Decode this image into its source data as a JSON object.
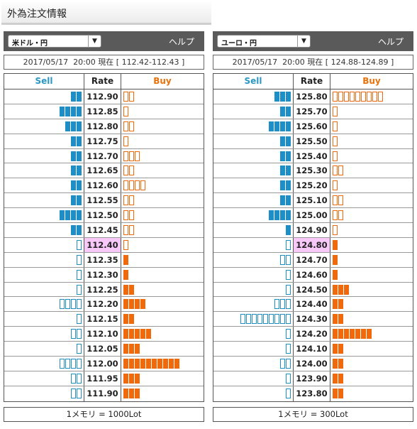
{
  "page": {
    "title": "外為注文情報"
  },
  "board_headers": {
    "sell": "Sell",
    "rate": "Rate",
    "buy": "Buy"
  },
  "colors": {
    "sell": "#1d8ec6",
    "buy": "#f06a0c",
    "current_rate_bg": "#f8c8f8",
    "header_bg": "#5a5a5a"
  },
  "panels": [
    {
      "pair": "米ドル・円",
      "help": "ヘルプ",
      "date": "2017/05/17",
      "time": "20:00",
      "status_word": "現在",
      "price_range": "[ 112.42-112.43 ]",
      "memo": "1メモリ = 1000Lot",
      "current_rate": "112.40",
      "rows": [
        {
          "rate": "112.90",
          "sell": 2,
          "sell_filled": true,
          "buy": 2,
          "buy_filled": false
        },
        {
          "rate": "112.85",
          "sell": 4,
          "sell_filled": true,
          "buy": 1,
          "buy_filled": false
        },
        {
          "rate": "112.80",
          "sell": 3,
          "sell_filled": true,
          "buy": 2,
          "buy_filled": false
        },
        {
          "rate": "112.75",
          "sell": 2,
          "sell_filled": true,
          "buy": 1,
          "buy_filled": false
        },
        {
          "rate": "112.70",
          "sell": 2,
          "sell_filled": true,
          "buy": 3,
          "buy_filled": false
        },
        {
          "rate": "112.65",
          "sell": 2,
          "sell_filled": true,
          "buy": 2,
          "buy_filled": false
        },
        {
          "rate": "112.60",
          "sell": 2,
          "sell_filled": true,
          "buy": 4,
          "buy_filled": false
        },
        {
          "rate": "112.55",
          "sell": 2,
          "sell_filled": true,
          "buy": 2,
          "buy_filled": false
        },
        {
          "rate": "112.50",
          "sell": 4,
          "sell_filled": true,
          "buy": 2,
          "buy_filled": false
        },
        {
          "rate": "112.45",
          "sell": 2,
          "sell_filled": true,
          "buy": 2,
          "buy_filled": false
        },
        {
          "rate": "112.40",
          "sell": 1,
          "sell_filled": false,
          "buy": 1,
          "buy_filled": false,
          "sell_extra_filled": 1,
          "buy_extra_filled": 1
        },
        {
          "rate": "112.35",
          "sell": 1,
          "sell_filled": false,
          "buy": 1,
          "buy_filled": true
        },
        {
          "rate": "112.30",
          "sell": 1,
          "sell_filled": false,
          "buy": 1,
          "buy_filled": true
        },
        {
          "rate": "112.25",
          "sell": 1,
          "sell_filled": false,
          "buy": 2,
          "buy_filled": true
        },
        {
          "rate": "112.20",
          "sell": 4,
          "sell_filled": false,
          "buy": 4,
          "buy_filled": true
        },
        {
          "rate": "112.15",
          "sell": 1,
          "sell_filled": false,
          "buy": 2,
          "buy_filled": true
        },
        {
          "rate": "112.10",
          "sell": 2,
          "sell_filled": false,
          "buy": 5,
          "buy_filled": true
        },
        {
          "rate": "112.05",
          "sell": 1,
          "sell_filled": false,
          "buy": 3,
          "buy_filled": true
        },
        {
          "rate": "112.00",
          "sell": 4,
          "sell_filled": false,
          "buy": 10,
          "buy_filled": true
        },
        {
          "rate": "111.95",
          "sell": 2,
          "sell_filled": false,
          "buy": 3,
          "buy_filled": true
        },
        {
          "rate": "111.90",
          "sell": 2,
          "sell_filled": false,
          "buy": 3,
          "buy_filled": true
        }
      ]
    },
    {
      "pair": "ユーロ・円",
      "help": "ヘルプ",
      "date": "2017/05/17",
      "time": "20:00",
      "status_word": "現在",
      "price_range": "[ 124.88-124.89 ]",
      "memo": "1メモリ = 300Lot",
      "current_rate": "124.80",
      "rows": [
        {
          "rate": "125.80",
          "sell": 3,
          "sell_filled": true,
          "buy": 9,
          "buy_filled": false
        },
        {
          "rate": "125.70",
          "sell": 2,
          "sell_filled": true,
          "buy": 1,
          "buy_filled": false
        },
        {
          "rate": "125.60",
          "sell": 4,
          "sell_filled": true,
          "buy": 1,
          "buy_filled": false
        },
        {
          "rate": "125.50",
          "sell": 2,
          "sell_filled": true,
          "buy": 1,
          "buy_filled": false
        },
        {
          "rate": "125.40",
          "sell": 2,
          "sell_filled": true,
          "buy": 1,
          "buy_filled": false
        },
        {
          "rate": "125.30",
          "sell": 2,
          "sell_filled": true,
          "buy": 2,
          "buy_filled": false
        },
        {
          "rate": "125.20",
          "sell": 2,
          "sell_filled": true,
          "buy": 1,
          "buy_filled": false
        },
        {
          "rate": "125.10",
          "sell": 2,
          "sell_filled": true,
          "buy": 2,
          "buy_filled": false
        },
        {
          "rate": "125.00",
          "sell": 4,
          "sell_filled": true,
          "buy": 2,
          "buy_filled": false
        },
        {
          "rate": "124.90",
          "sell": 1,
          "sell_filled": true,
          "buy": 1,
          "buy_filled": false
        },
        {
          "rate": "124.80",
          "sell": 1,
          "sell_filled": false,
          "buy": 1,
          "buy_filled": true
        },
        {
          "rate": "124.70",
          "sell": 2,
          "sell_filled": false,
          "buy": 1,
          "buy_filled": true
        },
        {
          "rate": "124.60",
          "sell": 1,
          "sell_filled": false,
          "buy": 1,
          "buy_filled": true
        },
        {
          "rate": "124.50",
          "sell": 1,
          "sell_filled": false,
          "buy": 3,
          "buy_filled": true
        },
        {
          "rate": "124.40",
          "sell": 3,
          "sell_filled": false,
          "buy": 2,
          "buy_filled": true
        },
        {
          "rate": "124.30",
          "sell": 9,
          "sell_filled": false,
          "buy": 2,
          "buy_filled": true
        },
        {
          "rate": "124.20",
          "sell": 1,
          "sell_filled": false,
          "buy": 7,
          "buy_filled": true
        },
        {
          "rate": "124.10",
          "sell": 1,
          "sell_filled": false,
          "buy": 2,
          "buy_filled": true
        },
        {
          "rate": "124.00",
          "sell": 2,
          "sell_filled": false,
          "buy": 2,
          "buy_filled": true
        },
        {
          "rate": "123.90",
          "sell": 1,
          "sell_filled": false,
          "buy": 2,
          "buy_filled": true
        },
        {
          "rate": "123.80",
          "sell": 1,
          "sell_filled": false,
          "buy": 2,
          "buy_filled": true
        }
      ]
    }
  ]
}
